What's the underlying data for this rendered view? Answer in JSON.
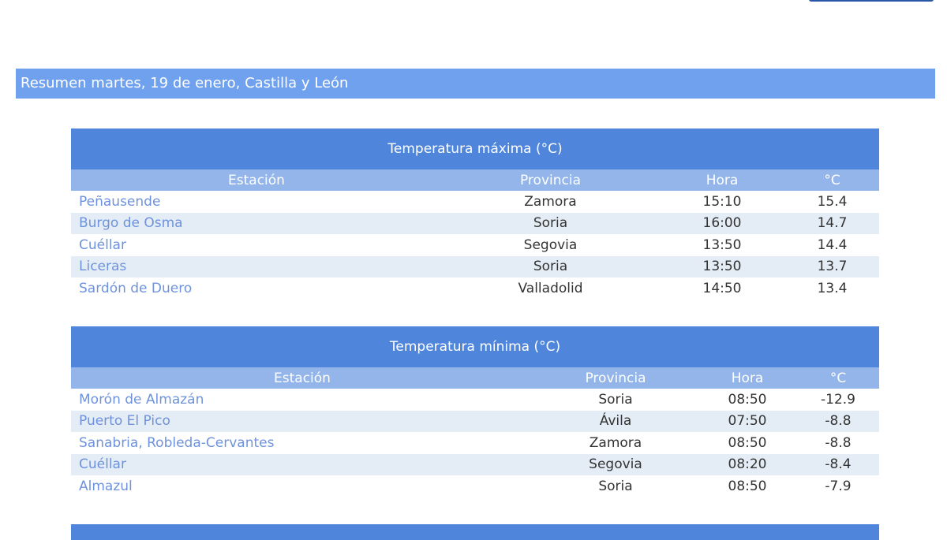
{
  "banner": "Resumen martes, 19 de enero, Castilla y León",
  "columns": [
    "Estación",
    "Provincia",
    "Hora",
    "°C"
  ],
  "max": {
    "title": "Temperatura máxima (°C)",
    "rows": [
      [
        "Peñausende",
        "Zamora",
        "15:10",
        "15.4"
      ],
      [
        "Burgo de Osma",
        "Soria",
        "16:00",
        "14.7"
      ],
      [
        "Cuéllar",
        "Segovia",
        "13:50",
        "14.4"
      ],
      [
        "Liceras",
        "Soria",
        "13:50",
        "13.7"
      ],
      [
        "Sardón de Duero",
        "Valladolid",
        "14:50",
        "13.4"
      ]
    ]
  },
  "min": {
    "title": "Temperatura mínima (°C)",
    "rows": [
      [
        "Morón de Almazán",
        "Soria",
        "08:50",
        "-12.9"
      ],
      [
        "Puerto El Pico",
        "Ávila",
        "07:50",
        "-8.8"
      ],
      [
        "Sanabria, Robleda-Cervantes",
        "Zamora",
        "08:50",
        "-8.8"
      ],
      [
        "Cuéllar",
        "Segovia",
        "08:20",
        "-8.4"
      ],
      [
        "Almazul",
        "Soria",
        "08:50",
        "-7.9"
      ]
    ]
  },
  "colors": {
    "banner": "#70a1ee",
    "table_title": "#4f86db",
    "table_header": "#93b5ea",
    "link": "#6e92dc"
  }
}
